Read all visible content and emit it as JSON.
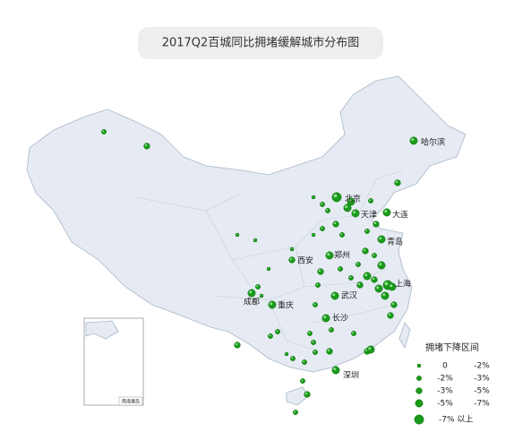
{
  "title": "2017Q2百城同比拥堵缓解城市分布图",
  "cities": [
    "哈尔滨",
    "北京",
    "天津",
    "大连",
    "青岛",
    "西安",
    "郑州",
    "上海",
    "武汉",
    "成都",
    "重庆",
    "长沙",
    "深圳"
  ],
  "inset_label": "南海诸岛",
  "legend": {
    "title": "拥堵下降区间",
    "items": [
      [
        "0",
        "-2%"
      ],
      [
        "-2%",
        "-3%"
      ],
      [
        "-3%",
        "-5%"
      ],
      [
        "-5%",
        "-7%"
      ],
      [
        "-7% 以上"
      ]
    ]
  }
}
